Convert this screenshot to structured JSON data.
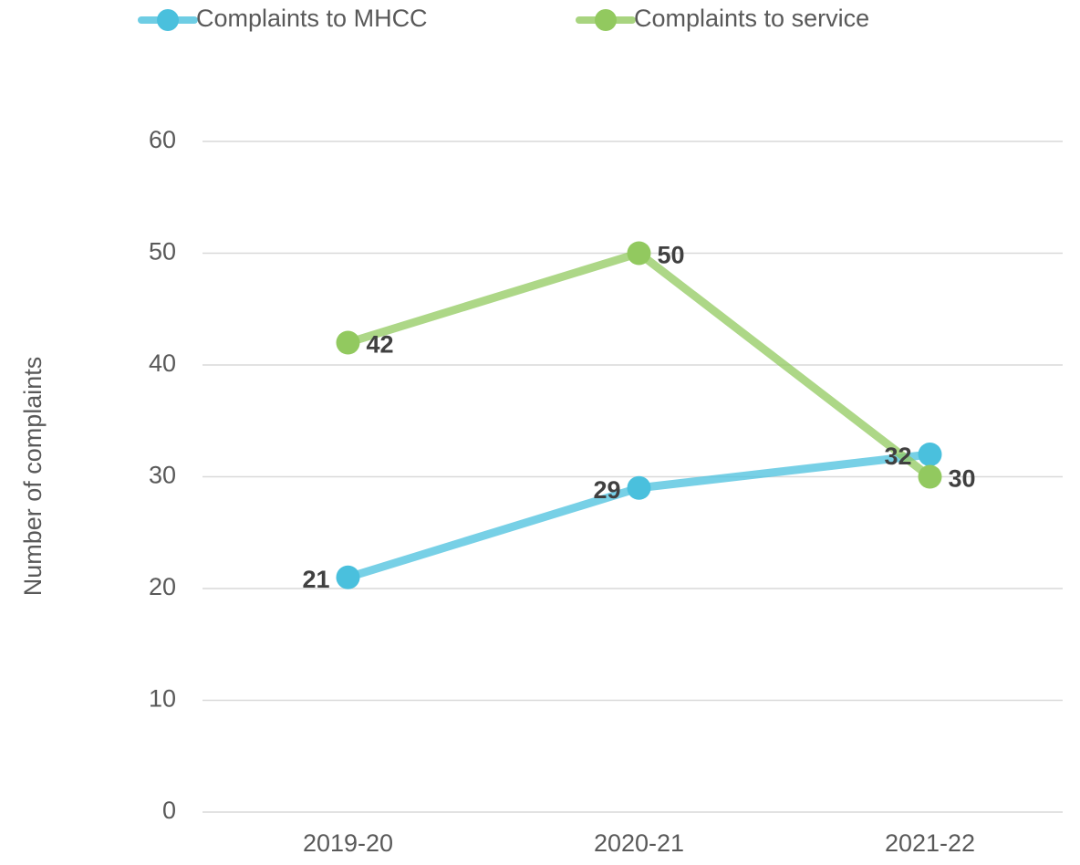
{
  "chart_data": {
    "type": "line",
    "categories": [
      "2019-20",
      "2020-21",
      "2021-22"
    ],
    "series": [
      {
        "name": "Complaints to MHCC",
        "color": "#4ac0dd",
        "values": [
          21,
          29,
          32
        ],
        "label_position": "left"
      },
      {
        "name": "Complaints to service",
        "color": "#92c95f",
        "values": [
          42,
          50,
          30
        ],
        "label_position": "right"
      }
    ],
    "y_label": "Number of complaints",
    "ylim": [
      0,
      60
    ],
    "yticks": [
      0,
      10,
      20,
      30,
      40,
      50,
      60
    ],
    "grid": true,
    "legend": "top"
  }
}
